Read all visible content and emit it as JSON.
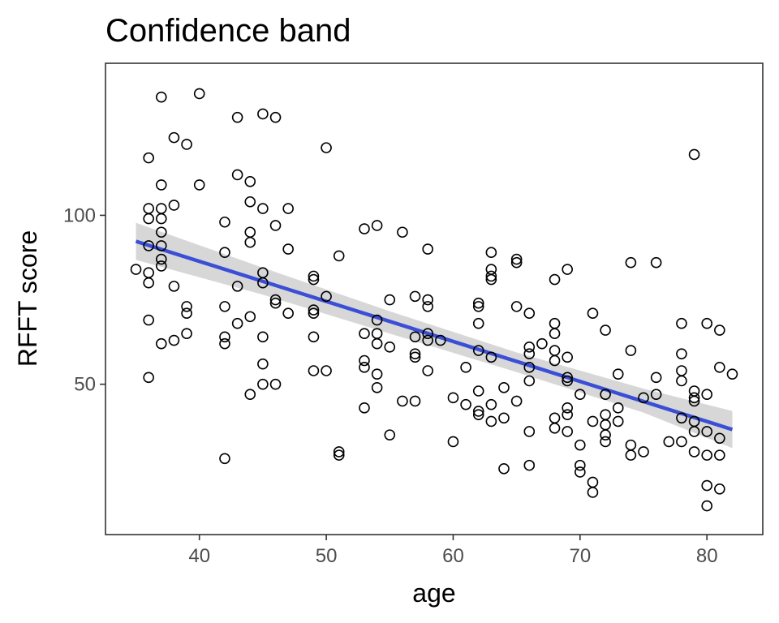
{
  "chart_data": {
    "type": "scatter",
    "title": "Confidence band",
    "xlabel": "age",
    "ylabel": "RFFT score",
    "xlim": [
      32.6,
      84.4
    ],
    "ylim": [
      5.5,
      145
    ],
    "xticks": [
      40,
      50,
      60,
      70,
      80
    ],
    "yticks": [
      50,
      100
    ],
    "grid": false,
    "legend": "none",
    "colors": {
      "points": "#000000",
      "fit_line": "#3A4FD6",
      "band": "#D3D3D3",
      "panel_border": "#333333",
      "tick_label": "#4D4D4D"
    },
    "points": [
      [
        35,
        84
      ],
      [
        36,
        117
      ],
      [
        36,
        102
      ],
      [
        36,
        99
      ],
      [
        36,
        91
      ],
      [
        36,
        83
      ],
      [
        36,
        80
      ],
      [
        36,
        69
      ],
      [
        36,
        52
      ],
      [
        37,
        135
      ],
      [
        37,
        109
      ],
      [
        37,
        102
      ],
      [
        37,
        99
      ],
      [
        37,
        95
      ],
      [
        37,
        91
      ],
      [
        37,
        87
      ],
      [
        37,
        85
      ],
      [
        37,
        62
      ],
      [
        38,
        123
      ],
      [
        38,
        103
      ],
      [
        38,
        79
      ],
      [
        38,
        63
      ],
      [
        39,
        121
      ],
      [
        39,
        73
      ],
      [
        39,
        71
      ],
      [
        39,
        65
      ],
      [
        40,
        136
      ],
      [
        40,
        109
      ],
      [
        42,
        98
      ],
      [
        42,
        89
      ],
      [
        42,
        73
      ],
      [
        42,
        64
      ],
      [
        42,
        62
      ],
      [
        42,
        28
      ],
      [
        43,
        129
      ],
      [
        43,
        112
      ],
      [
        43,
        79
      ],
      [
        43,
        68
      ],
      [
        44,
        110
      ],
      [
        44,
        104
      ],
      [
        44,
        95
      ],
      [
        44,
        92
      ],
      [
        44,
        70
      ],
      [
        44,
        47
      ],
      [
        45,
        130
      ],
      [
        45,
        102
      ],
      [
        45,
        83
      ],
      [
        45,
        80
      ],
      [
        45,
        64
      ],
      [
        45,
        56
      ],
      [
        45,
        50
      ],
      [
        46,
        129
      ],
      [
        46,
        97
      ],
      [
        46,
        75
      ],
      [
        46,
        74
      ],
      [
        46,
        50
      ],
      [
        47,
        102
      ],
      [
        47,
        90
      ],
      [
        47,
        71
      ],
      [
        49,
        82
      ],
      [
        49,
        81
      ],
      [
        49,
        72
      ],
      [
        49,
        71
      ],
      [
        49,
        64
      ],
      [
        49,
        54
      ],
      [
        50,
        120
      ],
      [
        50,
        76
      ],
      [
        50,
        54
      ],
      [
        51,
        88
      ],
      [
        51,
        30
      ],
      [
        51,
        29
      ],
      [
        53,
        96
      ],
      [
        53,
        65
      ],
      [
        53,
        57
      ],
      [
        53,
        55
      ],
      [
        53,
        43
      ],
      [
        54,
        97
      ],
      [
        54,
        69
      ],
      [
        54,
        65
      ],
      [
        54,
        62
      ],
      [
        54,
        53
      ],
      [
        54,
        49
      ],
      [
        55,
        75
      ],
      [
        55,
        61
      ],
      [
        55,
        35
      ],
      [
        56,
        95
      ],
      [
        56,
        45
      ],
      [
        57,
        76
      ],
      [
        57,
        64
      ],
      [
        57,
        59
      ],
      [
        57,
        58
      ],
      [
        57,
        45
      ],
      [
        58,
        90
      ],
      [
        58,
        75
      ],
      [
        58,
        73
      ],
      [
        58,
        65
      ],
      [
        58,
        63
      ],
      [
        58,
        54
      ],
      [
        59,
        63
      ],
      [
        60,
        46
      ],
      [
        60,
        33
      ],
      [
        61,
        55
      ],
      [
        61,
        44
      ],
      [
        62,
        74
      ],
      [
        62,
        73
      ],
      [
        62,
        68
      ],
      [
        62,
        60
      ],
      [
        62,
        48
      ],
      [
        62,
        42
      ],
      [
        62,
        41
      ],
      [
        63,
        89
      ],
      [
        63,
        84
      ],
      [
        63,
        82
      ],
      [
        63,
        81
      ],
      [
        63,
        58
      ],
      [
        63,
        44
      ],
      [
        63,
        39
      ],
      [
        64,
        49
      ],
      [
        64,
        40
      ],
      [
        64,
        25
      ],
      [
        65,
        87
      ],
      [
        65,
        86
      ],
      [
        65,
        73
      ],
      [
        65,
        45
      ],
      [
        66,
        71
      ],
      [
        66,
        61
      ],
      [
        66,
        59
      ],
      [
        66,
        55
      ],
      [
        66,
        51
      ],
      [
        66,
        36
      ],
      [
        66,
        26
      ],
      [
        67,
        62
      ],
      [
        68,
        81
      ],
      [
        68,
        68
      ],
      [
        68,
        65
      ],
      [
        68,
        60
      ],
      [
        68,
        57
      ],
      [
        68,
        40
      ],
      [
        68,
        37
      ],
      [
        69,
        84
      ],
      [
        69,
        58
      ],
      [
        69,
        52
      ],
      [
        69,
        51
      ],
      [
        69,
        43
      ],
      [
        69,
        41
      ],
      [
        69,
        36
      ],
      [
        70,
        47
      ],
      [
        70,
        32
      ],
      [
        70,
        26
      ],
      [
        70,
        24
      ],
      [
        71,
        71
      ],
      [
        71,
        39
      ],
      [
        71,
        21
      ],
      [
        71,
        18
      ],
      [
        72,
        66
      ],
      [
        72,
        47
      ],
      [
        72,
        41
      ],
      [
        72,
        38
      ],
      [
        72,
        35
      ],
      [
        72,
        33
      ],
      [
        73,
        53
      ],
      [
        73,
        43
      ],
      [
        73,
        39
      ],
      [
        74,
        86
      ],
      [
        74,
        60
      ],
      [
        74,
        32
      ],
      [
        74,
        29
      ],
      [
        75,
        46
      ],
      [
        75,
        30
      ],
      [
        76,
        86
      ],
      [
        76,
        52
      ],
      [
        76,
        47
      ],
      [
        77,
        33
      ],
      [
        78,
        68
      ],
      [
        78,
        59
      ],
      [
        78,
        54
      ],
      [
        78,
        51
      ],
      [
        78,
        40
      ],
      [
        78,
        33
      ],
      [
        79,
        118
      ],
      [
        79,
        48
      ],
      [
        79,
        46
      ],
      [
        79,
        45
      ],
      [
        79,
        39
      ],
      [
        79,
        36
      ],
      [
        79,
        30
      ],
      [
        80,
        68
      ],
      [
        80,
        47
      ],
      [
        80,
        36
      ],
      [
        80,
        29
      ],
      [
        80,
        20
      ],
      [
        80,
        14
      ],
      [
        81,
        66
      ],
      [
        81,
        55
      ],
      [
        81,
        34
      ],
      [
        81,
        29
      ],
      [
        81,
        19
      ],
      [
        82,
        53
      ]
    ],
    "fit_line": {
      "x": [
        35,
        82
      ],
      "y": [
        92.3,
        36.6
      ]
    },
    "band": {
      "x": [
        35,
        45,
        55,
        65,
        75,
        82
      ],
      "upper": [
        97.8,
        84.5,
        71.6,
        59.4,
        48.7,
        42.1
      ],
      "lower": [
        86.8,
        76.5,
        65.0,
        53.6,
        41.6,
        31.1
      ]
    }
  }
}
